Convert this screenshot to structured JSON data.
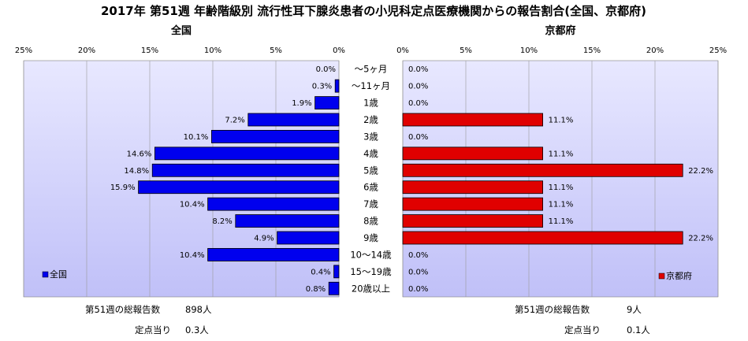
{
  "title": "2017年 第51週 年齢階級別 流行性耳下腺炎患者の小児科定点医療機関からの報告割合(全国、京都府)",
  "colors": {
    "national": "#0000ee",
    "kyoto": "#e00000",
    "plot_bg": "#c8c8f8"
  },
  "chart_data": {
    "type": "bar",
    "orientation": "horizontal",
    "categories": [
      "～5ヶ月",
      "～11ヶ月",
      "1歳",
      "2歳",
      "3歳",
      "4歳",
      "5歳",
      "6歳",
      "7歳",
      "8歳",
      "9歳",
      "10～14歳",
      "15～19歳",
      "20歳以上"
    ],
    "xlim": [
      0,
      25
    ],
    "xticks": [
      "0%",
      "5%",
      "10%",
      "15%",
      "20%",
      "25%"
    ],
    "grid": true,
    "series": [
      {
        "name": "全国",
        "subtitle": "全国",
        "direction": "reversed",
        "legend_position": "bottom-left",
        "values": [
          0.0,
          0.3,
          1.9,
          7.2,
          10.1,
          14.6,
          14.8,
          15.9,
          10.4,
          8.2,
          4.9,
          10.4,
          0.4,
          0.8
        ],
        "labels": [
          "0.0%",
          "0.3%",
          "1.9%",
          "7.2%",
          "10.1%",
          "14.6%",
          "14.8%",
          "15.9%",
          "10.4%",
          "8.2%",
          "4.9%",
          "10.4%",
          "0.4%",
          "0.8%"
        ]
      },
      {
        "name": "京都府",
        "subtitle": "京都府",
        "direction": "normal",
        "legend_position": "bottom-right",
        "values": [
          0.0,
          0.0,
          0.0,
          11.1,
          0.0,
          11.1,
          22.2,
          11.1,
          11.1,
          11.1,
          22.2,
          0.0,
          0.0,
          0.0
        ],
        "labels": [
          "0.0%",
          "0.0%",
          "0.0%",
          "11.1%",
          "0.0%",
          "11.1%",
          "22.2%",
          "11.1%",
          "11.1%",
          "11.1%",
          "22.2%",
          "0.0%",
          "0.0%",
          "0.0%"
        ]
      }
    ]
  },
  "footer": {
    "national": {
      "total_label": "第51週の総報告数",
      "total_value": "898人",
      "per_label": "定点当り",
      "per_value": "0.3人"
    },
    "kyoto": {
      "total_label": "第51週の総報告数",
      "total_value": "9人",
      "per_label": "定点当り",
      "per_value": "0.1人"
    }
  }
}
